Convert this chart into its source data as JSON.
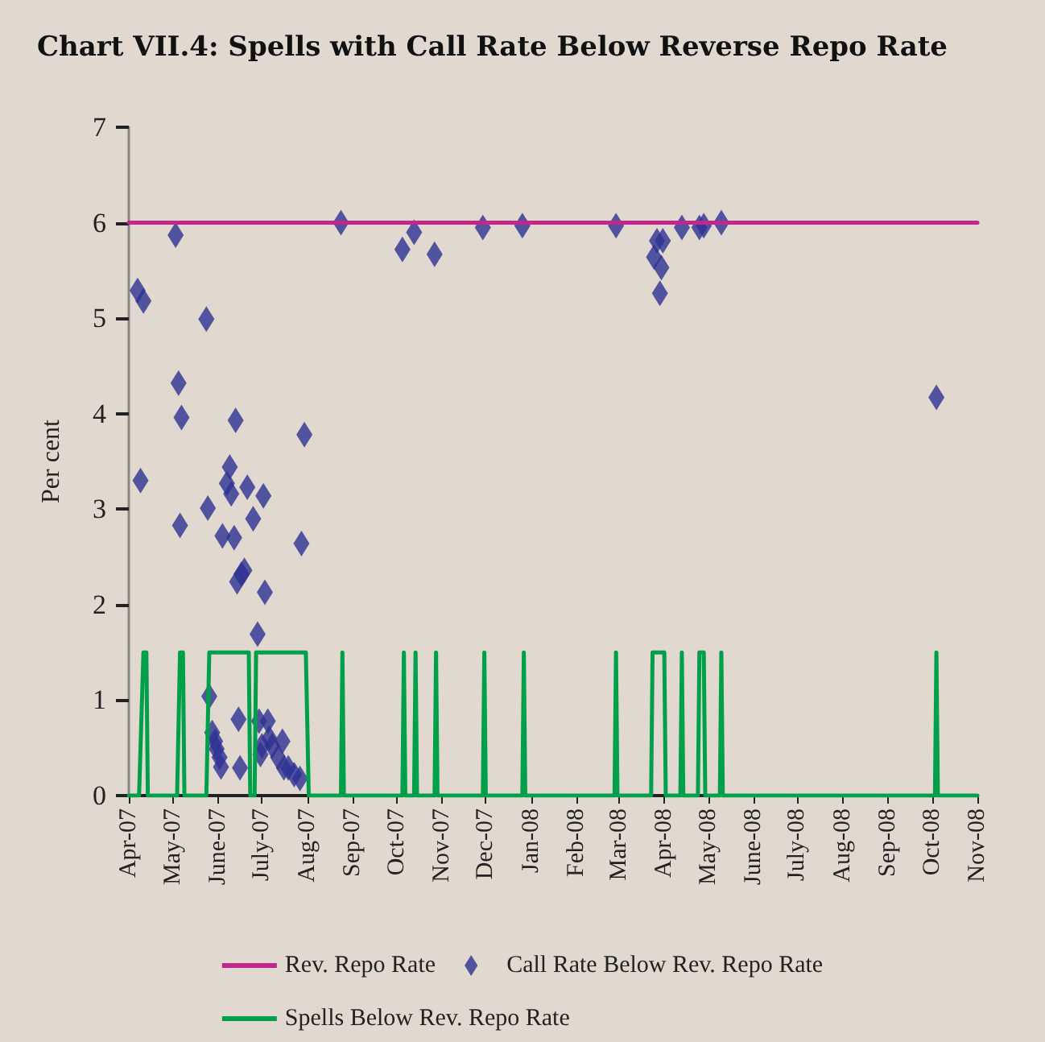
{
  "chart_data": {
    "type": "line",
    "title": "Chart VII.4: Spells with Call Rate Below Reverse Repo Rate",
    "ylabel": "Per cent",
    "xlim": [
      "2007-04-01",
      "2008-11-01"
    ],
    "xticks": [
      {
        "value": "2007-04-01",
        "label": "Apr-07"
      },
      {
        "value": "2007-05-01",
        "label": "May-07"
      },
      {
        "value": "2007-06-01",
        "label": "June-07"
      },
      {
        "value": "2007-07-01",
        "label": "July-07"
      },
      {
        "value": "2007-08-01",
        "label": "Aug-07"
      },
      {
        "value": "2007-09-01",
        "label": "Sep-07"
      },
      {
        "value": "2007-10-01",
        "label": "Oct-07"
      },
      {
        "value": "2007-11-01",
        "label": "Nov-07"
      },
      {
        "value": "2007-12-01",
        "label": "Dec-07"
      },
      {
        "value": "2008-01-01",
        "label": "Jan-08"
      },
      {
        "value": "2008-02-01",
        "label": "Feb-08"
      },
      {
        "value": "2008-03-01",
        "label": "Mar-08"
      },
      {
        "value": "2008-04-01",
        "label": "Apr-08"
      },
      {
        "value": "2008-05-01",
        "label": "May-08"
      },
      {
        "value": "2008-06-01",
        "label": "June-08"
      },
      {
        "value": "2008-07-01",
        "label": "July-08"
      },
      {
        "value": "2008-08-01",
        "label": "Aug-08"
      },
      {
        "value": "2008-09-01",
        "label": "Sep-08"
      },
      {
        "value": "2008-10-01",
        "label": "Oct-08"
      },
      {
        "value": "2008-11-01",
        "label": "Nov-08"
      }
    ],
    "ylim": [
      0,
      7
    ],
    "yticks": [
      0,
      1,
      2,
      3,
      4,
      5,
      6,
      7
    ],
    "grid": false,
    "legend": "bottom",
    "series": [
      {
        "name": "Rev. Repo Rate",
        "color": "#c0268c",
        "marker": "none",
        "x": [
          "2007-04-01",
          "2008-11-01"
        ],
        "values": [
          6,
          6
        ]
      },
      {
        "name": "Call Rate Below Rev. Repo Rate",
        "type": "scatter",
        "color": "#2e3192",
        "marker": "diamond",
        "x": [
          "2007-08-24",
          "2007-05-03",
          "2007-04-07",
          "2007-04-11",
          "2007-05-24",
          "2007-05-05",
          "2007-05-07",
          "2007-06-13",
          "2007-07-30",
          "2007-04-09",
          "2007-06-09",
          "2007-06-07",
          "2007-06-10",
          "2007-06-21",
          "2007-07-02",
          "2007-05-25",
          "2007-06-25",
          "2007-05-06",
          "2007-06-04",
          "2007-06-12",
          "2007-07-28",
          "2007-06-19",
          "2007-06-17",
          "2007-06-14",
          "2007-07-03",
          "2007-06-28",
          "2007-05-26",
          "2007-06-15",
          "2007-06-29",
          "2007-07-05",
          "2007-05-28",
          "2007-05-30",
          "2007-05-31",
          "2007-06-02",
          "2007-06-03",
          "2007-06-16",
          "2007-06-30",
          "2007-07-06",
          "2007-07-08",
          "2007-07-15",
          "2007-07-12",
          "2007-07-16",
          "2007-07-19",
          "2007-07-23",
          "2007-07-27",
          "2007-07-01",
          "2007-10-05",
          "2007-10-13",
          "2007-10-27",
          "2007-11-29",
          "2007-12-26",
          "2008-02-28",
          "2008-03-27",
          "2008-03-25",
          "2008-03-30",
          "2008-03-29",
          "2008-03-31",
          "2008-04-13",
          "2008-04-25",
          "2008-04-28",
          "2008-05-10",
          "2008-10-04"
        ],
        "values": [
          6.0,
          5.87,
          5.29,
          5.18,
          4.99,
          4.32,
          3.96,
          3.93,
          3.78,
          3.3,
          3.44,
          3.27,
          3.16,
          3.23,
          3.14,
          3.01,
          2.9,
          2.83,
          2.72,
          2.7,
          2.64,
          2.36,
          2.32,
          2.24,
          2.13,
          1.69,
          1.04,
          0.8,
          0.78,
          0.78,
          0.66,
          0.57,
          0.49,
          0.4,
          0.3,
          0.29,
          0.43,
          0.6,
          0.52,
          0.57,
          0.4,
          0.29,
          0.29,
          0.22,
          0.18,
          0.52,
          5.72,
          5.9,
          5.67,
          5.95,
          5.97,
          5.97,
          5.81,
          5.64,
          5.53,
          5.26,
          5.81,
          5.95,
          5.95,
          5.97,
          6.0,
          4.17
        ]
      },
      {
        "name": "Spells Below Rev. Repo Rate",
        "color": "#00a04a",
        "marker": "none",
        "x": [
          "2007-04-01",
          "2007-04-08",
          "2007-04-11",
          "2007-04-13",
          "2007-04-14",
          "2007-05-04",
          "2007-05-06",
          "2007-05-08",
          "2007-05-09",
          "2007-05-24",
          "2007-05-26",
          "2007-06-22",
          "2007-06-23",
          "2007-06-26",
          "2007-06-27",
          "2007-07-31",
          "2007-08-02",
          "2007-08-24",
          "2007-08-25",
          "2007-08-26",
          "2007-10-05",
          "2007-10-06",
          "2007-10-07",
          "2007-10-13",
          "2007-10-14",
          "2007-10-15",
          "2007-10-27",
          "2007-10-28",
          "2007-10-29",
          "2007-11-29",
          "2007-11-30",
          "2007-12-01",
          "2007-12-26",
          "2007-12-27",
          "2007-12-28",
          "2008-02-27",
          "2008-02-28",
          "2008-02-29",
          "2008-03-23",
          "2008-03-24",
          "2008-04-01",
          "2008-04-02",
          "2008-04-12",
          "2008-04-13",
          "2008-04-14",
          "2008-04-24",
          "2008-04-25",
          "2008-04-28",
          "2008-04-29",
          "2008-05-09",
          "2008-05-10",
          "2008-05-11",
          "2008-10-03",
          "2008-10-04",
          "2008-10-05",
          "2008-11-01"
        ],
        "values": [
          0,
          0,
          1.5,
          1.5,
          0,
          0,
          1.5,
          1.5,
          0,
          0,
          1.5,
          1.5,
          0,
          0,
          1.5,
          1.5,
          0,
          0,
          1.5,
          0,
          0,
          1.5,
          0,
          0,
          1.5,
          0,
          0,
          1.5,
          0,
          0,
          1.5,
          0,
          0,
          1.5,
          0,
          0,
          1.5,
          0,
          0,
          1.5,
          1.5,
          0,
          0,
          1.5,
          0,
          0,
          1.5,
          1.5,
          0,
          0,
          1.5,
          0,
          0,
          1.5,
          0,
          0
        ]
      }
    ]
  }
}
